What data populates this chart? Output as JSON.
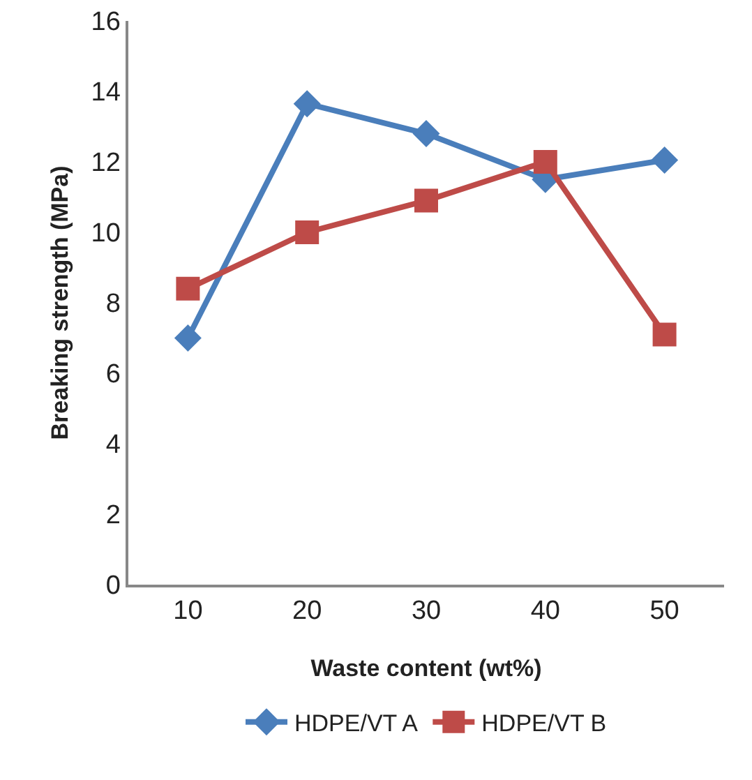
{
  "chart_data": {
    "type": "line",
    "xlabel": "Waste content (wt%)",
    "ylabel": "Breaking strength (MPa)",
    "categories": [
      "10",
      "20",
      "30",
      "40",
      "50"
    ],
    "series": [
      {
        "name": "HDPE/VT A",
        "color": "#4a7ebb",
        "marker": "diamond",
        "values": [
          7.0,
          13.65,
          12.8,
          11.5,
          12.05
        ]
      },
      {
        "name": "HDPE/VT B",
        "color": "#be4b48",
        "marker": "square",
        "values": [
          8.4,
          10.0,
          10.9,
          12.0,
          7.1
        ]
      }
    ],
    "ylim": [
      0,
      16
    ],
    "yticks": [
      0,
      2,
      4,
      6,
      8,
      10,
      12,
      14,
      16
    ],
    "grid": false,
    "legend": "bottom"
  }
}
